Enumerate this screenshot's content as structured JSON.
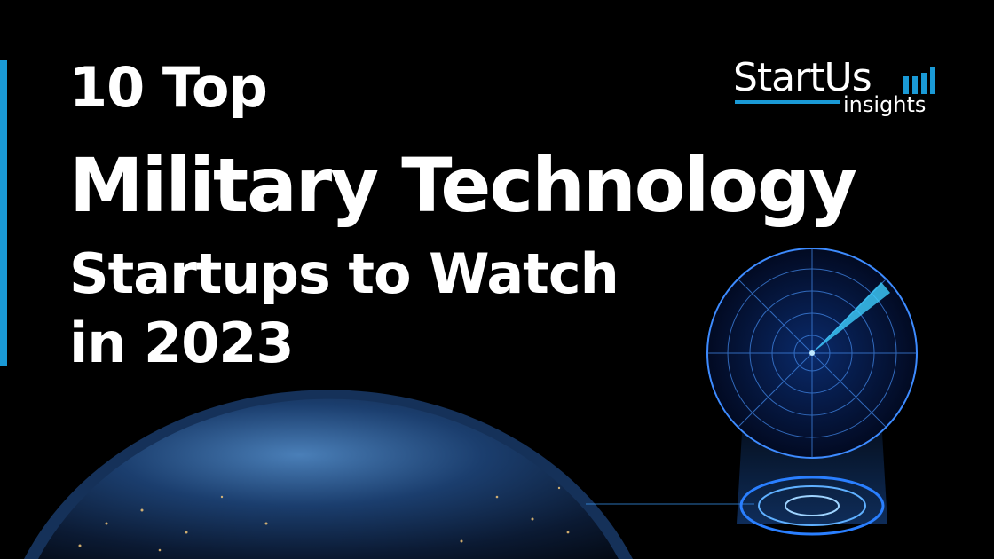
{
  "title": {
    "line1": "10 Top",
    "line2": "Military Technology",
    "line3": "Startups to Watch",
    "line4": "in 2023"
  },
  "logo": {
    "main": "StartUs",
    "sub": "insights"
  },
  "colors": {
    "accent": "#1a9ad6",
    "background": "#000000",
    "text": "#ffffff"
  },
  "icons": [
    "radar-icon",
    "earth-globe",
    "logo-bars-icon"
  ]
}
